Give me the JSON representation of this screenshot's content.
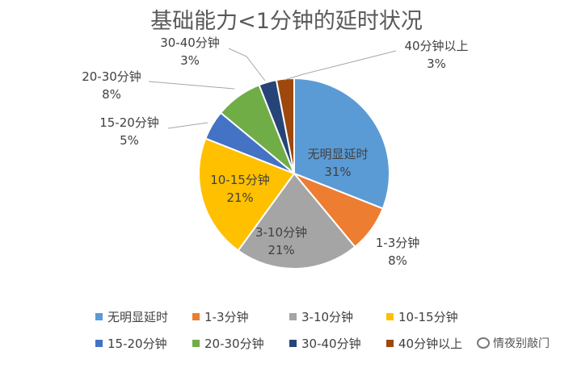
{
  "chart_data": {
    "type": "pie",
    "title": "基础能力<1分钟的延时状况",
    "slices": [
      {
        "label": "无明显延时",
        "value": 31,
        "display": "31%",
        "color": "#5b9bd5"
      },
      {
        "label": "1-3分钟",
        "value": 8,
        "display": "8%",
        "color": "#ed7d31"
      },
      {
        "label": "3-10分钟",
        "value": 21,
        "display": "21%",
        "color": "#a5a5a5"
      },
      {
        "label": "10-15分钟",
        "value": 21,
        "display": "21%",
        "color": "#ffc000"
      },
      {
        "label": "15-20分钟",
        "value": 5,
        "display": "5%",
        "color": "#4472c4"
      },
      {
        "label": "20-30分钟",
        "value": 8,
        "display": "8%",
        "color": "#70ad47"
      },
      {
        "label": "30-40分钟",
        "value": 3,
        "display": "3%",
        "color": "#264478"
      },
      {
        "label": "40分钟以上",
        "value": 3,
        "display": "3%",
        "color": "#9e480e"
      }
    ],
    "legend_position": "bottom"
  },
  "watermark": {
    "text": "情夜别敲门"
  }
}
